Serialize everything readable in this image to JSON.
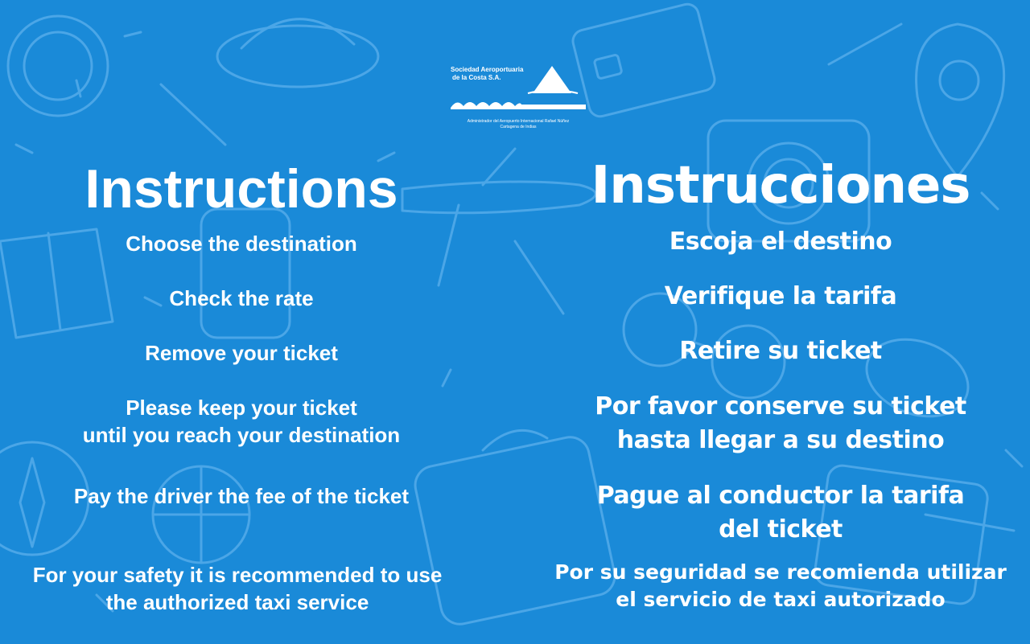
{
  "brand": {
    "name_line1": "Sociedad Aeroportuaria",
    "name_line2": "de la Costa S.A.",
    "sub_line1": "Administrador del Aeropuerto Internacional Rafael Núñez",
    "sub_line2": "Cartagena de Indias"
  },
  "colors": {
    "background": "#1a8ad8",
    "text": "#ffffff",
    "doodle": "#5cb0ec"
  },
  "english": {
    "title": "Instructions",
    "steps": [
      {
        "lines": [
          "Choose the destination"
        ]
      },
      {
        "lines": [
          "Check the rate"
        ]
      },
      {
        "lines": [
          "Remove your ticket"
        ]
      },
      {
        "lines": [
          "Please keep your ticket",
          "until you reach your destination"
        ]
      },
      {
        "lines": [
          "Pay the driver the fee of the ticket"
        ]
      },
      {
        "lines": [
          "For your safety it is recommended to use",
          "the authorized taxi service"
        ]
      }
    ]
  },
  "spanish": {
    "title": "Instrucciones",
    "steps": [
      {
        "lines": [
          "Escoja el destino"
        ]
      },
      {
        "lines": [
          "Verifique la tarifa"
        ]
      },
      {
        "lines": [
          "Retire su ticket"
        ]
      },
      {
        "lines": [
          "Por favor conserve su ticket",
          "hasta llegar a su destino"
        ]
      },
      {
        "lines": [
          "Pague al conductor la tarifa",
          "del ticket"
        ]
      },
      {
        "lines": [
          "Por su seguridad se recomienda utilizar",
          "el servicio de taxi autorizado"
        ]
      }
    ]
  }
}
